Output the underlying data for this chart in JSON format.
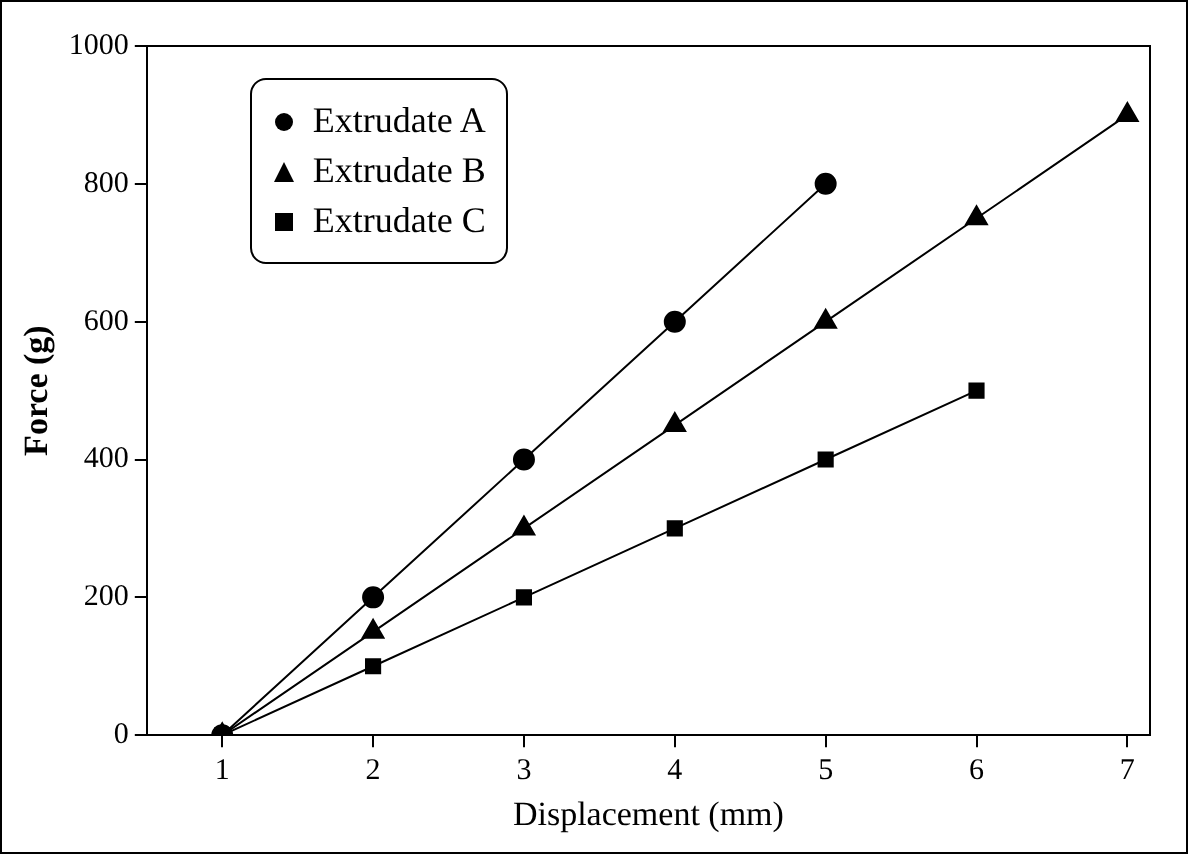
{
  "chart_data": {
    "type": "line",
    "xlabel": "Displacement (mm)",
    "ylabel": "Force (g)",
    "xlim": [
      0.5,
      7.15
    ],
    "xticks": [
      1,
      2,
      3,
      4,
      5,
      6,
      7
    ],
    "ylim": [
      0,
      1000
    ],
    "yticks": [
      0,
      200,
      400,
      600,
      800,
      1000
    ],
    "grid": false,
    "legend": "top left",
    "line_style": "solid",
    "series": [
      {
        "name": "Extrudate A",
        "color": "#000000",
        "marker": "circle",
        "x": [
          1,
          2,
          3,
          4,
          5
        ],
        "values": [
          0,
          200,
          400,
          600,
          800
        ]
      },
      {
        "name": "Extrudate B",
        "color": "#000000",
        "marker": "triangle",
        "x": [
          1,
          2,
          3,
          4,
          5,
          6,
          7
        ],
        "values": [
          0,
          150,
          300,
          450,
          600,
          750,
          900
        ]
      },
      {
        "name": "Extrudate C",
        "color": "#000000",
        "marker": "square",
        "x": [
          1,
          2,
          3,
          4,
          5,
          6
        ],
        "values": [
          0,
          100,
          200,
          300,
          400,
          500
        ]
      }
    ]
  }
}
